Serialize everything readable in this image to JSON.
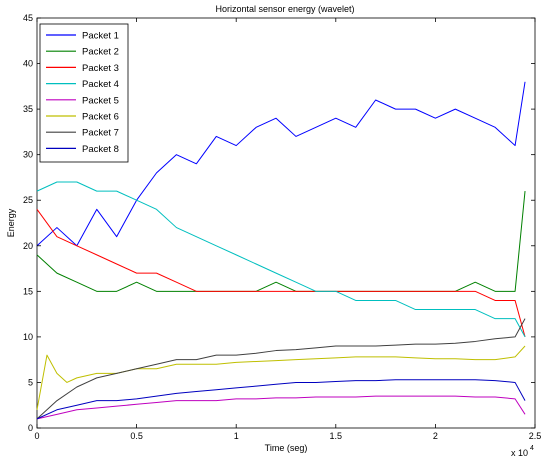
{
  "chart_data": {
    "type": "line",
    "title": "Horizontal sensor energy (wavelet)",
    "xlabel": "Time (seg)",
    "ylabel": "Energy",
    "x_multiplier": "x 10",
    "x_multiplier_exp": "4",
    "xlim": [
      0,
      2.5
    ],
    "ylim": [
      0,
      45
    ],
    "xticks": [
      "0",
      "0.5",
      "1",
      "1.5",
      "2",
      "2.5"
    ],
    "yticks": [
      "0",
      "5",
      "10",
      "15",
      "20",
      "25",
      "30",
      "35",
      "40",
      "45"
    ],
    "grid": false,
    "legend_position": "top-left",
    "series": [
      {
        "name": "Packet 1",
        "color": "#0000ff",
        "x": [
          0,
          0.1,
          0.2,
          0.3,
          0.4,
          0.5,
          0.6,
          0.7,
          0.8,
          0.9,
          1.0,
          1.1,
          1.2,
          1.3,
          1.4,
          1.5,
          1.6,
          1.7,
          1.8,
          1.9,
          2.0,
          2.1,
          2.2,
          2.3,
          2.4,
          2.45
        ],
        "y": [
          20,
          22,
          20,
          24,
          21,
          25,
          28,
          30,
          29,
          32,
          31,
          33,
          34,
          32,
          33,
          34,
          33,
          36,
          35,
          35,
          34,
          35,
          34,
          33,
          31,
          38
        ]
      },
      {
        "name": "Packet 2",
        "color": "#008000",
        "x": [
          0,
          0.1,
          0.2,
          0.3,
          0.4,
          0.5,
          0.6,
          0.7,
          0.8,
          0.9,
          1.0,
          1.1,
          1.2,
          1.3,
          1.4,
          1.5,
          1.6,
          1.7,
          1.8,
          1.9,
          2.0,
          2.1,
          2.2,
          2.3,
          2.4,
          2.45
        ],
        "y": [
          19,
          17,
          16,
          15,
          15,
          16,
          15,
          15,
          15,
          15,
          15,
          15,
          16,
          15,
          15,
          15,
          15,
          15,
          15,
          15,
          15,
          15,
          16,
          15,
          15,
          26
        ]
      },
      {
        "name": "Packet 3",
        "color": "#ff0000",
        "x": [
          0,
          0.1,
          0.2,
          0.3,
          0.4,
          0.5,
          0.6,
          0.7,
          0.8,
          0.9,
          1.0,
          1.1,
          1.2,
          1.3,
          1.4,
          1.5,
          1.6,
          1.7,
          1.8,
          1.9,
          2.0,
          2.1,
          2.2,
          2.3,
          2.4,
          2.45
        ],
        "y": [
          24,
          21,
          20,
          19,
          18,
          17,
          17,
          16,
          15,
          15,
          15,
          15,
          15,
          15,
          15,
          15,
          15,
          15,
          15,
          15,
          15,
          15,
          15,
          14,
          14,
          10
        ]
      },
      {
        "name": "Packet 4",
        "color": "#00bfbf",
        "x": [
          0,
          0.1,
          0.2,
          0.3,
          0.4,
          0.5,
          0.6,
          0.7,
          0.8,
          0.9,
          1.0,
          1.1,
          1.2,
          1.3,
          1.4,
          1.5,
          1.6,
          1.7,
          1.8,
          1.9,
          2.0,
          2.1,
          2.2,
          2.3,
          2.4,
          2.45
        ],
        "y": [
          26,
          27,
          27,
          26,
          26,
          25,
          24,
          22,
          21,
          20,
          19,
          18,
          17,
          16,
          15,
          15,
          14,
          14,
          14,
          13,
          13,
          13,
          13,
          12,
          12,
          10
        ]
      },
      {
        "name": "Packet 5",
        "color": "#bf00bf",
        "x": [
          0,
          0.1,
          0.2,
          0.3,
          0.4,
          0.5,
          0.6,
          0.7,
          0.8,
          0.9,
          1.0,
          1.1,
          1.2,
          1.3,
          1.4,
          1.5,
          1.6,
          1.7,
          1.8,
          1.9,
          2.0,
          2.1,
          2.2,
          2.3,
          2.4,
          2.45
        ],
        "y": [
          1,
          1.5,
          2,
          2.2,
          2.4,
          2.6,
          2.8,
          3,
          3,
          3,
          3.2,
          3.2,
          3.3,
          3.3,
          3.4,
          3.4,
          3.4,
          3.5,
          3.5,
          3.5,
          3.5,
          3.5,
          3.4,
          3.4,
          3.2,
          1.5
        ]
      },
      {
        "name": "Packet 6",
        "color": "#bfbf00",
        "x": [
          0,
          0.05,
          0.1,
          0.15,
          0.2,
          0.3,
          0.4,
          0.5,
          0.6,
          0.7,
          0.8,
          0.9,
          1.0,
          1.1,
          1.2,
          1.3,
          1.4,
          1.5,
          1.6,
          1.7,
          1.8,
          1.9,
          2.0,
          2.1,
          2.2,
          2.3,
          2.4,
          2.45
        ],
        "y": [
          2,
          8,
          6,
          5,
          5.5,
          6,
          6,
          6.5,
          6.5,
          7,
          7,
          7,
          7.2,
          7.3,
          7.4,
          7.5,
          7.6,
          7.7,
          7.8,
          7.8,
          7.8,
          7.7,
          7.6,
          7.6,
          7.5,
          7.5,
          7.8,
          9
        ]
      },
      {
        "name": "Packet 7",
        "color": "#404040",
        "x": [
          0,
          0.1,
          0.2,
          0.3,
          0.4,
          0.5,
          0.6,
          0.7,
          0.8,
          0.9,
          1.0,
          1.1,
          1.2,
          1.3,
          1.4,
          1.5,
          1.6,
          1.7,
          1.8,
          1.9,
          2.0,
          2.1,
          2.2,
          2.3,
          2.4,
          2.45
        ],
        "y": [
          1,
          3,
          4.5,
          5.5,
          6,
          6.5,
          7,
          7.5,
          7.5,
          8,
          8,
          8.2,
          8.5,
          8.6,
          8.8,
          9,
          9,
          9,
          9.1,
          9.2,
          9.2,
          9.3,
          9.5,
          9.8,
          10,
          12
        ]
      },
      {
        "name": "Packet 8",
        "color": "#0000bf",
        "x": [
          0,
          0.1,
          0.2,
          0.3,
          0.4,
          0.5,
          0.6,
          0.7,
          0.8,
          0.9,
          1.0,
          1.1,
          1.2,
          1.3,
          1.4,
          1.5,
          1.6,
          1.7,
          1.8,
          1.9,
          2.0,
          2.1,
          2.2,
          2.3,
          2.4,
          2.45
        ],
        "y": [
          1,
          2,
          2.5,
          3,
          3,
          3.2,
          3.5,
          3.8,
          4,
          4.2,
          4.4,
          4.6,
          4.8,
          5,
          5,
          5.1,
          5.2,
          5.2,
          5.3,
          5.3,
          5.3,
          5.3,
          5.3,
          5.2,
          5,
          3
        ]
      }
    ]
  }
}
